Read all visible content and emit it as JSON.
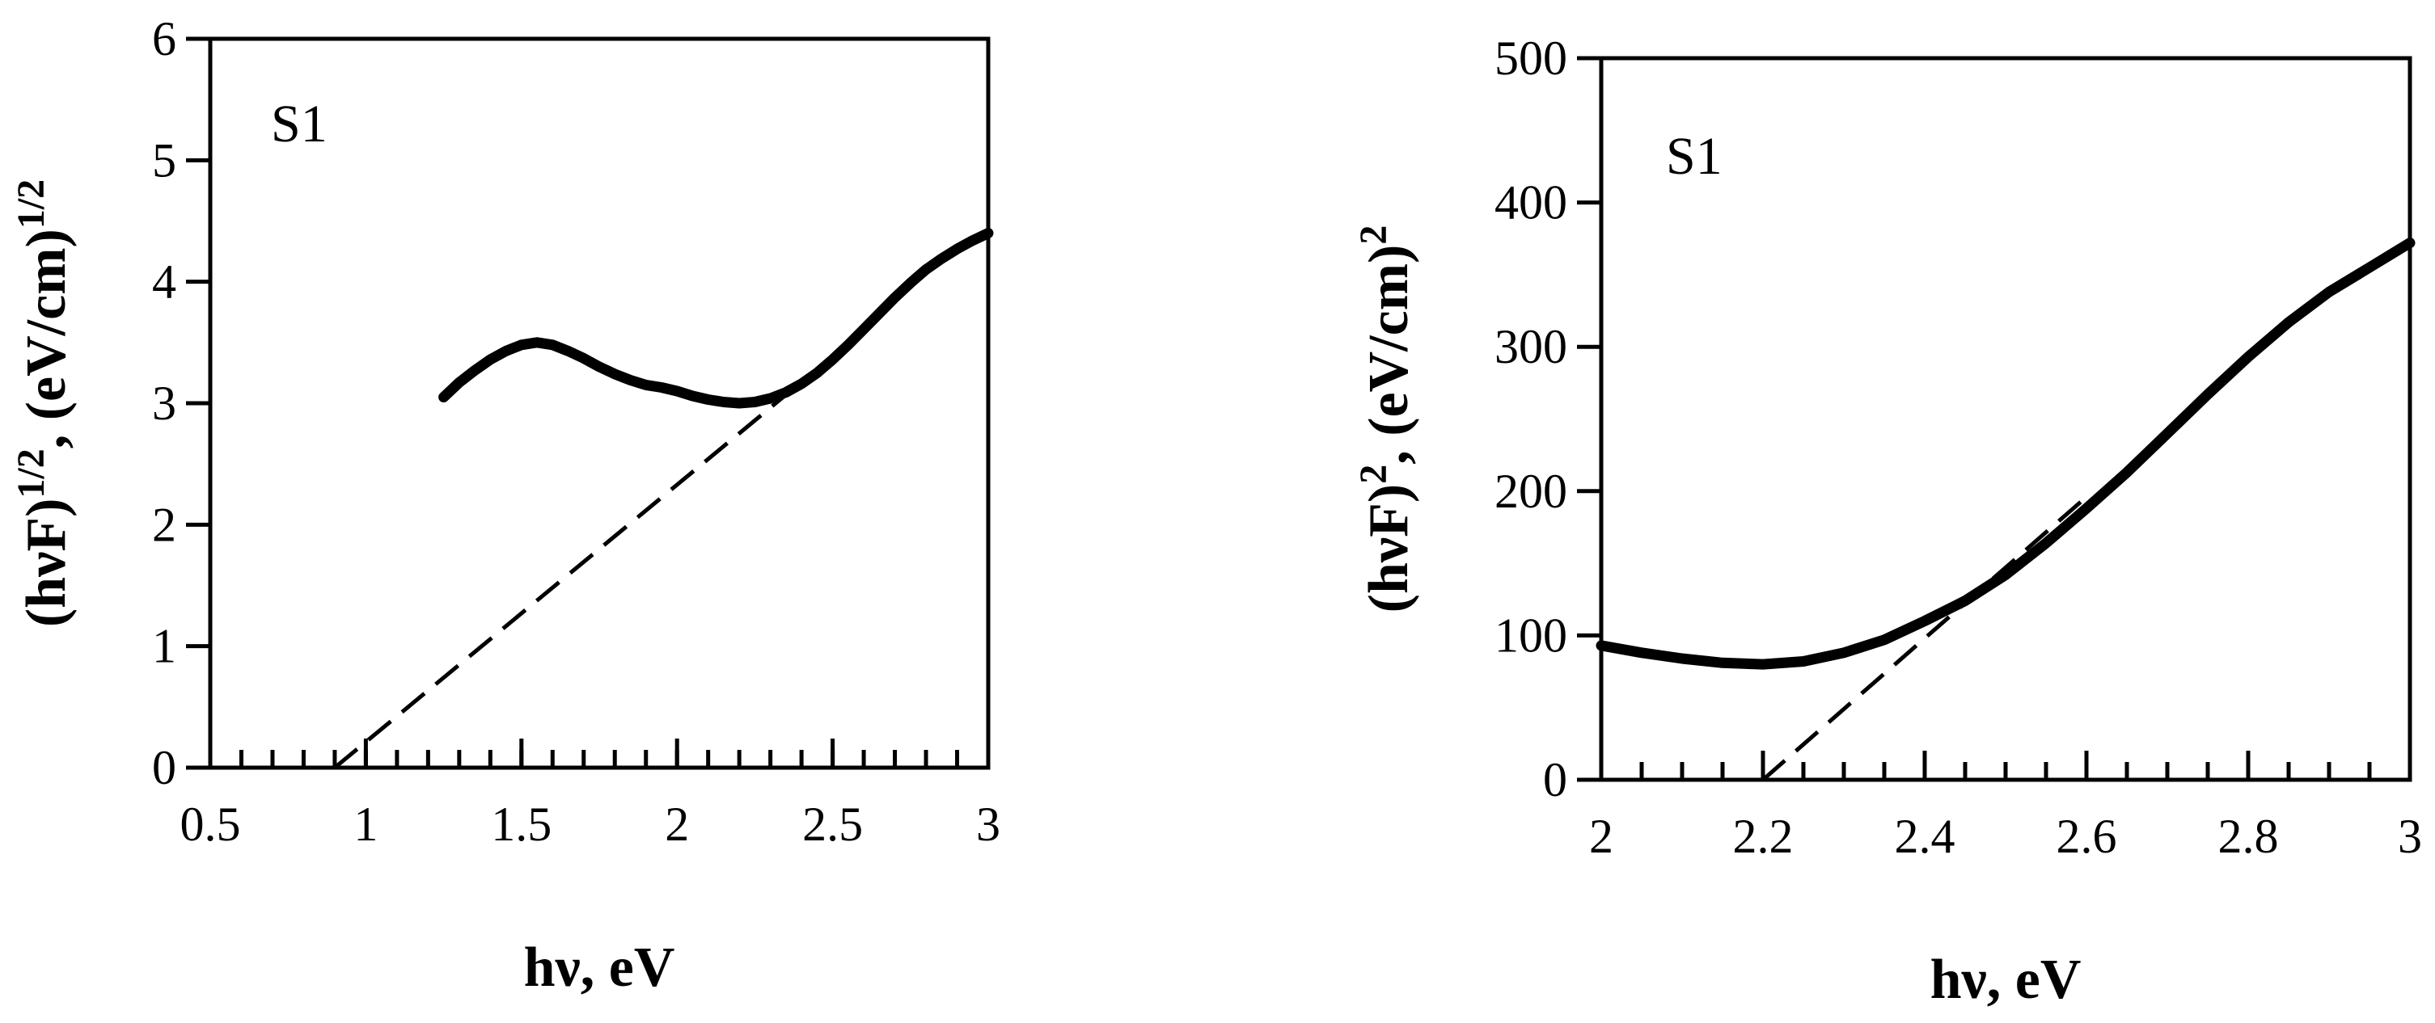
{
  "chart_data": [
    {
      "type": "line",
      "panel_label": "S1",
      "xlabel": "hν, eV",
      "ylabel_parts": [
        "(hνF)",
        "1/2",
        ", (eV/cm)",
        "1/2"
      ],
      "xlim": [
        0.5,
        3
      ],
      "ylim": [
        0,
        6
      ],
      "x_ticks": [
        0.5,
        1,
        1.5,
        2,
        2.5,
        3
      ],
      "x_tick_labels": [
        "0.5",
        "1",
        "1.5",
        "2",
        "2.5",
        "3"
      ],
      "x_minor_step": 0.1,
      "y_ticks": [
        0,
        1,
        2,
        3,
        4,
        5,
        6
      ],
      "y_tick_labels": [
        "0",
        "1",
        "2",
        "3",
        "4",
        "5",
        "6"
      ],
      "series": [
        {
          "name": "data",
          "style": "solid",
          "x": [
            1.25,
            1.3,
            1.35,
            1.4,
            1.45,
            1.5,
            1.55,
            1.6,
            1.65,
            1.7,
            1.75,
            1.8,
            1.85,
            1.9,
            1.95,
            2.0,
            2.05,
            2.1,
            2.15,
            2.2,
            2.25,
            2.3,
            2.35,
            2.4,
            2.45,
            2.5,
            2.55,
            2.6,
            2.65,
            2.7,
            2.75,
            2.8,
            2.85,
            2.9,
            2.95,
            3.0
          ],
          "y": [
            3.05,
            3.17,
            3.27,
            3.36,
            3.43,
            3.48,
            3.5,
            3.48,
            3.43,
            3.37,
            3.3,
            3.24,
            3.19,
            3.15,
            3.13,
            3.1,
            3.06,
            3.03,
            3.01,
            3.0,
            3.01,
            3.04,
            3.09,
            3.16,
            3.25,
            3.36,
            3.48,
            3.61,
            3.74,
            3.87,
            3.99,
            4.1,
            4.19,
            4.27,
            4.34,
            4.4
          ]
        },
        {
          "name": "linear extrapolation",
          "style": "dashed",
          "x": [
            0.9,
            2.35
          ],
          "y": [
            0.0,
            3.07
          ]
        }
      ]
    },
    {
      "type": "line",
      "panel_label": "S1",
      "xlabel": "hν, eV",
      "ylabel_parts": [
        "(hνF)",
        "2",
        ", (eV/cm)",
        "2"
      ],
      "xlim": [
        2,
        3
      ],
      "ylim": [
        0,
        500
      ],
      "x_ticks": [
        2,
        2.2,
        2.4,
        2.6,
        2.8,
        3
      ],
      "x_tick_labels": [
        "2",
        "2.2",
        "2.4",
        "2.6",
        "2.8",
        "3"
      ],
      "x_minor_step": 0.05,
      "y_ticks": [
        0,
        100,
        200,
        300,
        400,
        500
      ],
      "y_tick_labels": [
        "0",
        "100",
        "200",
        "300",
        "400",
        "500"
      ],
      "series": [
        {
          "name": "data",
          "style": "solid",
          "x": [
            2.0,
            2.05,
            2.1,
            2.15,
            2.2,
            2.25,
            2.3,
            2.35,
            2.4,
            2.45,
            2.5,
            2.55,
            2.6,
            2.65,
            2.7,
            2.75,
            2.8,
            2.85,
            2.9,
            2.95,
            3.0
          ],
          "y": [
            93,
            88,
            84,
            81,
            80,
            82,
            88,
            97,
            110,
            124,
            142,
            164,
            188,
            213,
            240,
            267,
            293,
            317,
            338,
            355,
            372
          ]
        },
        {
          "name": "linear extrapolation",
          "style": "dashed",
          "x": [
            2.2,
            2.6
          ],
          "y": [
            0,
            196
          ]
        }
      ]
    }
  ]
}
